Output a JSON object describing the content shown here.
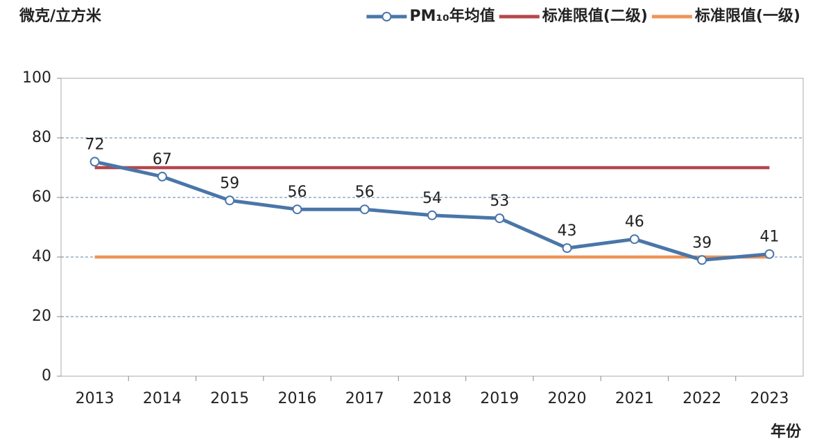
{
  "chart_data": {
    "type": "line",
    "y_label": "微克/立方米",
    "x_label": "年份",
    "categories": [
      "2013",
      "2014",
      "2015",
      "2016",
      "2017",
      "2018",
      "2019",
      "2020",
      "2021",
      "2022",
      "2023"
    ],
    "series": [
      {
        "name": "PM₁₀年均值",
        "color": "#4a76a8",
        "values": [
          72,
          67,
          59,
          56,
          56,
          54,
          53,
          43,
          46,
          39,
          41
        ],
        "markers": true,
        "show_labels": true
      },
      {
        "name": "标准限值(二级)",
        "color": "#b5474b",
        "values": [
          70,
          70,
          70,
          70,
          70,
          70,
          70,
          70,
          70,
          70,
          70
        ],
        "markers": false,
        "show_labels": false
      },
      {
        "name": "标准限值(一级)",
        "color": "#ee9455",
        "values": [
          40,
          40,
          40,
          40,
          40,
          40,
          40,
          40,
          40,
          40,
          40
        ],
        "markers": false,
        "show_labels": false
      }
    ],
    "ylim": [
      0,
      100
    ],
    "yticks": [
      0,
      20,
      40,
      60,
      80,
      100
    ],
    "grid": true,
    "legend": "top-right"
  }
}
